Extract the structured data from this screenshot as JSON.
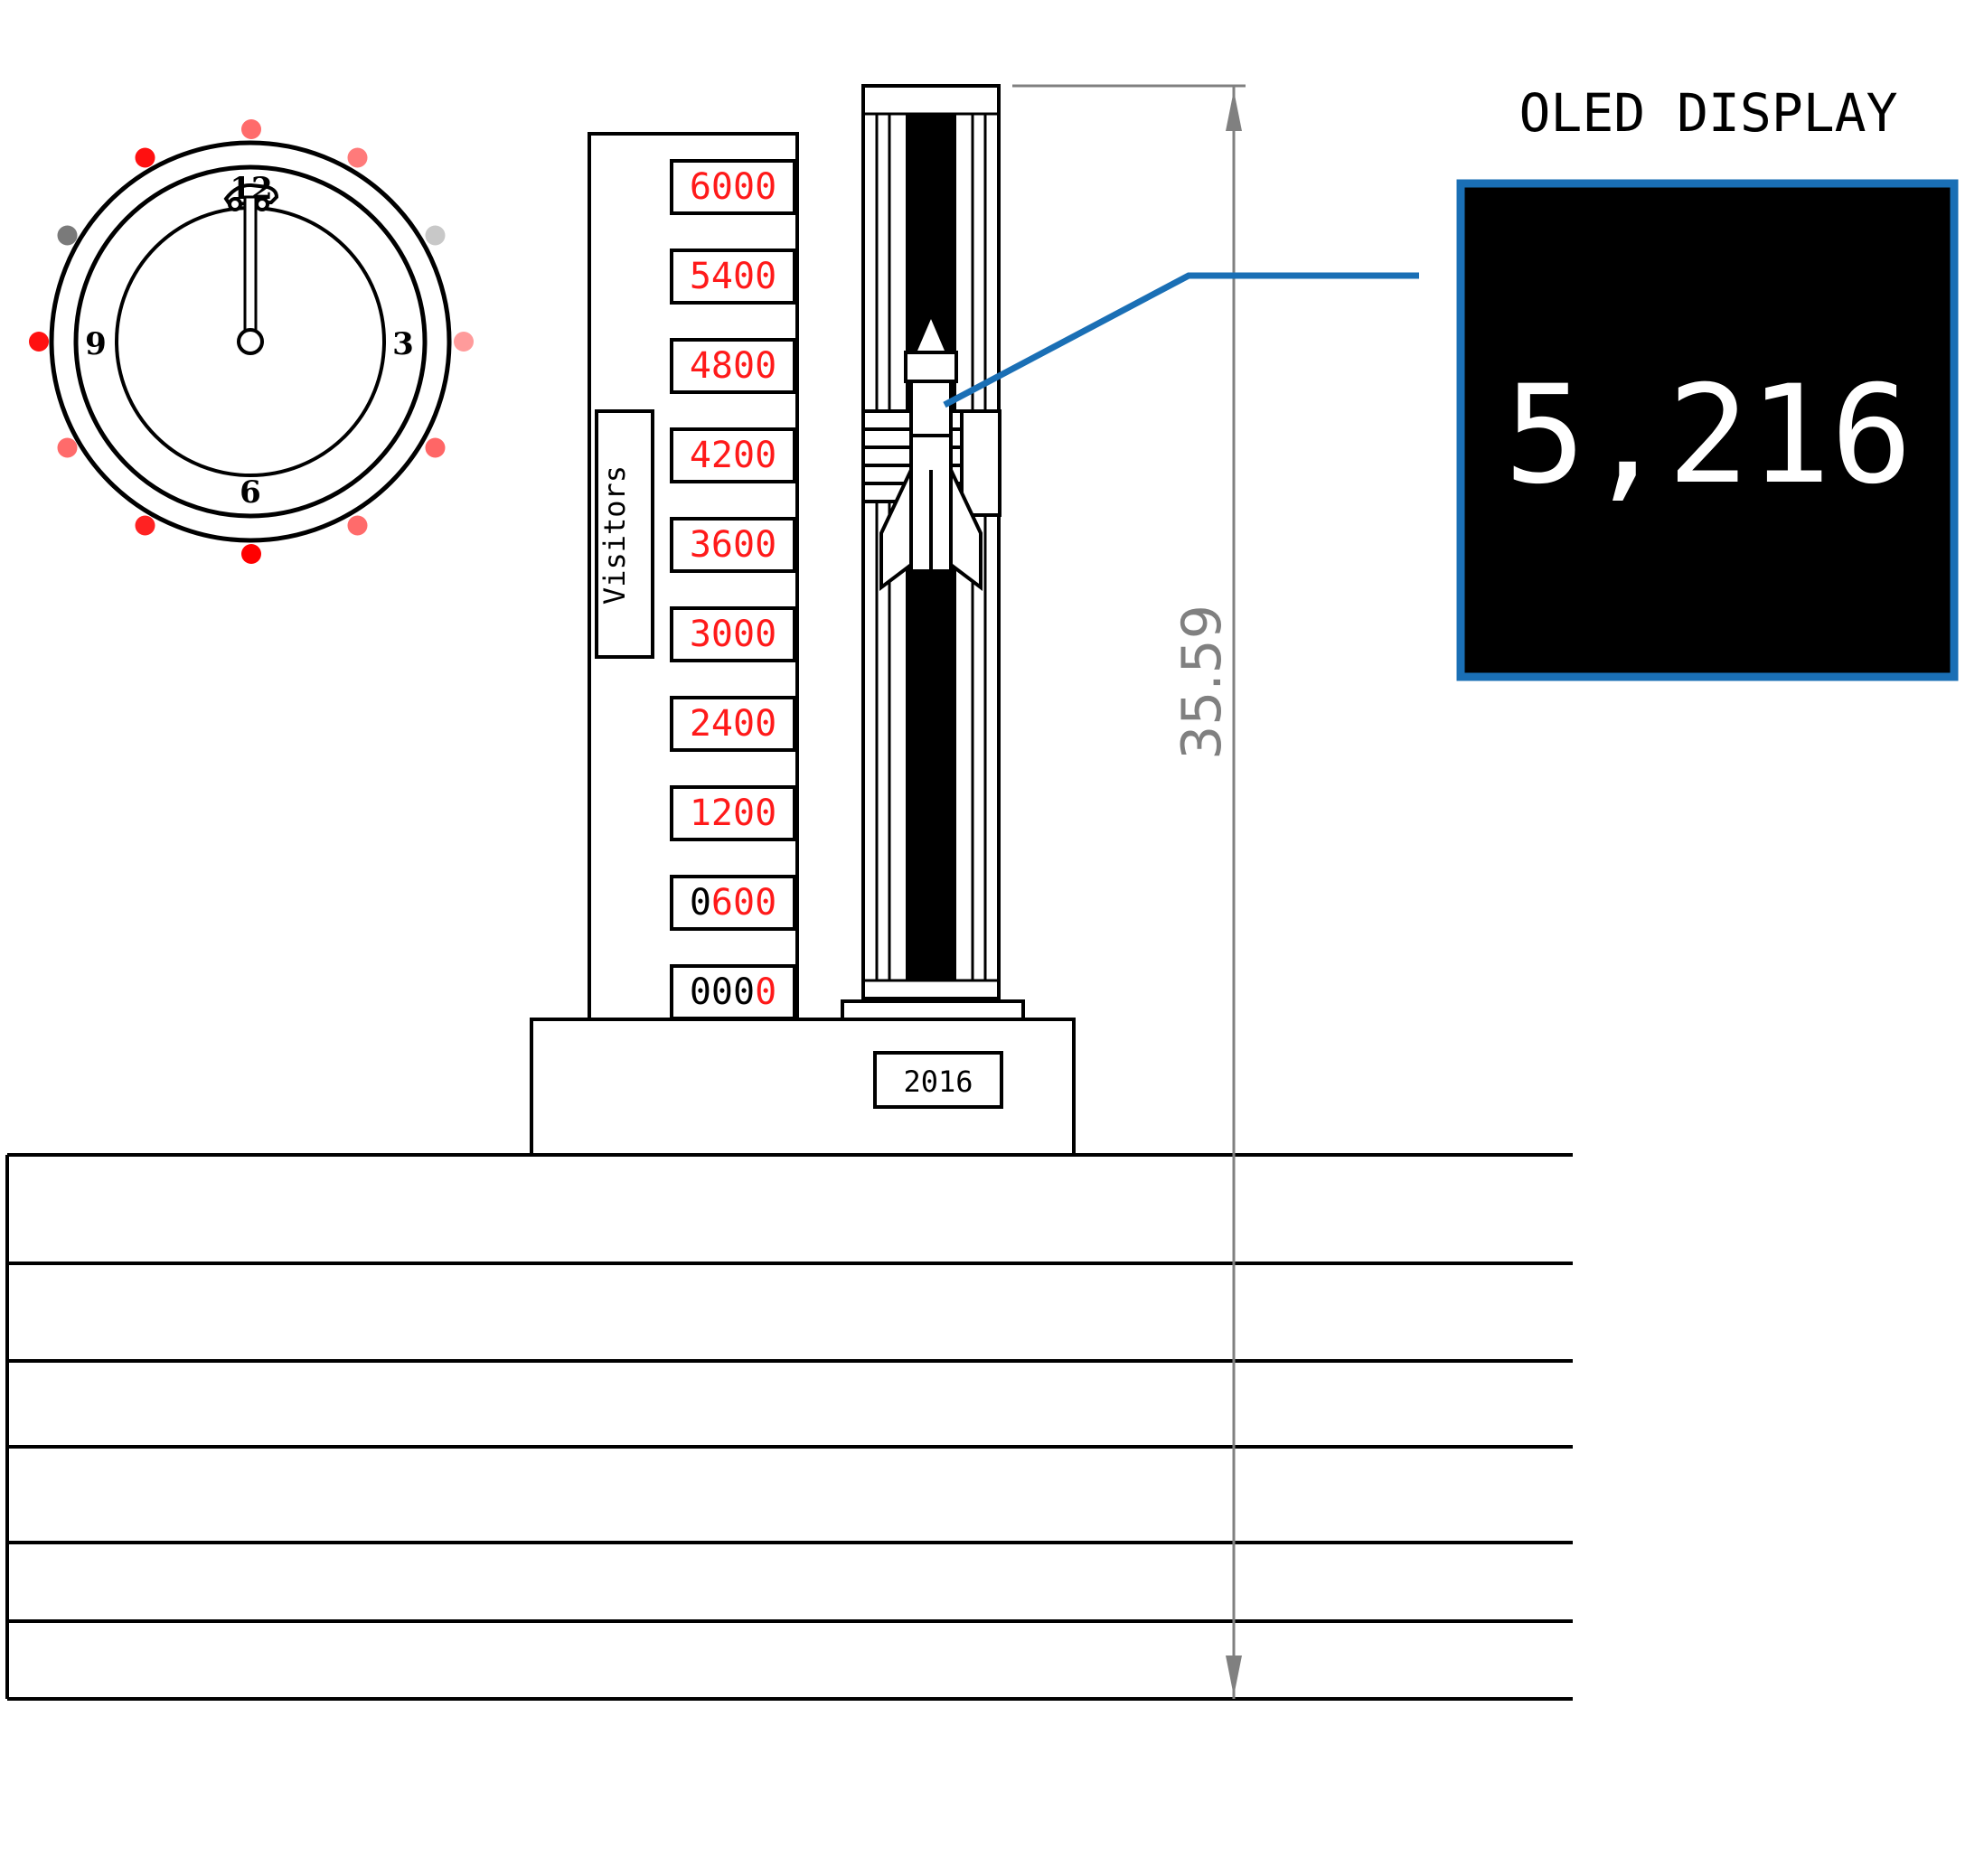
{
  "oled": {
    "title": "OLED DISPLAY",
    "value": "5,216",
    "frame_color": "#1a6fb5",
    "screen_color": "#000000"
  },
  "tower": {
    "label": "Visitors",
    "readouts": [
      {
        "text": "6000",
        "lit_digits": 4
      },
      {
        "text": "5400",
        "lit_digits": 4
      },
      {
        "text": "4800",
        "lit_digits": 4
      },
      {
        "text": "4200",
        "lit_digits": 4
      },
      {
        "text": "3600",
        "lit_digits": 4
      },
      {
        "text": "3000",
        "lit_digits": 4
      },
      {
        "text": "2400",
        "lit_digits": 4
      },
      {
        "text": "1200",
        "lit_digits": 4
      },
      {
        "text": "0600",
        "lit_digits": 3
      },
      {
        "text": "0000",
        "lit_digits": 1
      }
    ],
    "lit_color": "#ff1a1a",
    "unlit_color": "#000000"
  },
  "base": {
    "year": "2016"
  },
  "dimension": {
    "value": "35.59"
  },
  "clock": {
    "numbers": {
      "top": "12",
      "right": "3",
      "bottom": "6",
      "left": "9"
    },
    "hand": "12",
    "led_colors": [
      "#ff6b6b",
      "#ff7a7a",
      "#c8c8c8",
      "#ff9b9b",
      "#ff6666",
      "#ff6b6b",
      "#ff0000",
      "#ff2222",
      "#ff6b6b",
      "#ff1111",
      "#7a7a7a",
      "#ff1010"
    ]
  }
}
